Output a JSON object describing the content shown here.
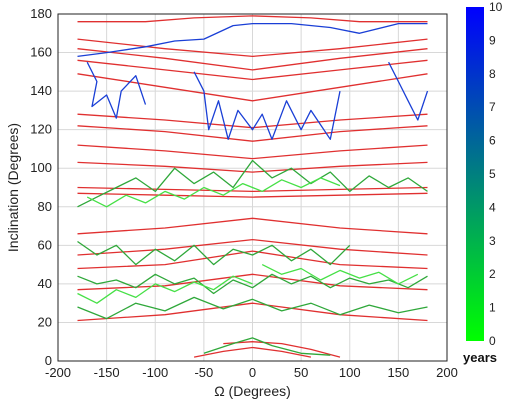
{
  "chart_data": {
    "type": "line",
    "title": "",
    "xlabel": "Ω  (Degrees)",
    "ylabel": "Inclination (Degrees)",
    "xlim": [
      -200,
      200
    ],
    "ylim": [
      0,
      180
    ],
    "xticks": [
      -200,
      -150,
      -100,
      -50,
      0,
      50,
      100,
      150,
      200
    ],
    "yticks": [
      0,
      20,
      40,
      60,
      80,
      100,
      120,
      140,
      160,
      180
    ],
    "grid": true,
    "colorbar": {
      "label": "years",
      "min": 0,
      "max": 10,
      "ticks": [
        0,
        1,
        2,
        3,
        4,
        5,
        6,
        7,
        8,
        9,
        10
      ],
      "color_min": "#00ff00",
      "color_max": "#0000ff"
    },
    "series": [
      {
        "color": "#e03030",
        "points": [
          [
            -180,
            21
          ],
          [
            -90,
            24
          ],
          [
            0,
            30
          ],
          [
            90,
            24
          ],
          [
            180,
            21
          ]
        ]
      },
      {
        "color": "#e03030",
        "points": [
          [
            -180,
            37
          ],
          [
            -90,
            39
          ],
          [
            0,
            45
          ],
          [
            90,
            39
          ],
          [
            180,
            37
          ]
        ]
      },
      {
        "color": "#e03030",
        "points": [
          [
            -180,
            48
          ],
          [
            -90,
            50
          ],
          [
            0,
            57
          ],
          [
            90,
            50
          ],
          [
            180,
            48
          ]
        ]
      },
      {
        "color": "#e03030",
        "points": [
          [
            -180,
            55
          ],
          [
            -90,
            58
          ],
          [
            0,
            63
          ],
          [
            90,
            58
          ],
          [
            180,
            55
          ]
        ]
      },
      {
        "color": "#e03030",
        "points": [
          [
            -180,
            66
          ],
          [
            -90,
            69
          ],
          [
            0,
            74
          ],
          [
            90,
            69
          ],
          [
            180,
            66
          ]
        ]
      },
      {
        "color": "#e03030",
        "points": [
          [
            -180,
            87
          ],
          [
            -90,
            86
          ],
          [
            0,
            85
          ],
          [
            90,
            86
          ],
          [
            180,
            87
          ]
        ]
      },
      {
        "color": "#e03030",
        "points": [
          [
            -180,
            90
          ],
          [
            -90,
            89
          ],
          [
            0,
            88
          ],
          [
            90,
            89
          ],
          [
            180,
            90
          ]
        ]
      },
      {
        "color": "#e03030",
        "points": [
          [
            -180,
            103
          ],
          [
            -90,
            101
          ],
          [
            0,
            98
          ],
          [
            90,
            101
          ],
          [
            180,
            103
          ]
        ]
      },
      {
        "color": "#e03030",
        "points": [
          [
            -180,
            112
          ],
          [
            -90,
            109
          ],
          [
            0,
            105
          ],
          [
            90,
            109
          ],
          [
            180,
            112
          ]
        ]
      },
      {
        "color": "#e03030",
        "points": [
          [
            -180,
            122
          ],
          [
            -90,
            119
          ],
          [
            0,
            114
          ],
          [
            90,
            119
          ],
          [
            180,
            122
          ]
        ]
      },
      {
        "color": "#e03030",
        "points": [
          [
            -180,
            128
          ],
          [
            -90,
            125
          ],
          [
            0,
            121
          ],
          [
            90,
            125
          ],
          [
            180,
            128
          ]
        ]
      },
      {
        "color": "#e03030",
        "points": [
          [
            -180,
            149
          ],
          [
            -90,
            142
          ],
          [
            0,
            135
          ],
          [
            90,
            142
          ],
          [
            180,
            149
          ]
        ]
      },
      {
        "color": "#e03030",
        "points": [
          [
            -180,
            156
          ],
          [
            -90,
            151
          ],
          [
            0,
            146
          ],
          [
            90,
            151
          ],
          [
            180,
            156
          ]
        ]
      },
      {
        "color": "#e03030",
        "points": [
          [
            -180,
            162
          ],
          [
            -90,
            157
          ],
          [
            0,
            151
          ],
          [
            90,
            157
          ],
          [
            180,
            162
          ]
        ]
      },
      {
        "color": "#e03030",
        "points": [
          [
            -180,
            167
          ],
          [
            -90,
            162
          ],
          [
            0,
            158
          ],
          [
            90,
            162
          ],
          [
            180,
            167
          ]
        ]
      },
      {
        "color": "#e03030",
        "points": [
          [
            -180,
            176
          ],
          [
            -110,
            176
          ],
          [
            -60,
            178
          ],
          [
            0,
            179
          ],
          [
            60,
            178
          ],
          [
            110,
            176
          ],
          [
            180,
            176
          ]
        ]
      },
      {
        "color": "#e03030",
        "points": [
          [
            -30,
            9
          ],
          [
            0,
            10
          ],
          [
            30,
            9
          ],
          [
            60,
            6
          ],
          [
            90,
            2
          ]
        ]
      },
      {
        "color": "#e03030",
        "points": [
          [
            -60,
            2
          ],
          [
            -30,
            5
          ],
          [
            0,
            7
          ],
          [
            30,
            5
          ],
          [
            60,
            2
          ]
        ]
      },
      {
        "color": "#1a3fd6",
        "points": [
          [
            -180,
            158
          ],
          [
            -150,
            160
          ],
          [
            -110,
            163
          ],
          [
            -80,
            166
          ],
          [
            -50,
            167
          ],
          [
            -20,
            174
          ],
          [
            0,
            175
          ],
          [
            40,
            175
          ],
          [
            80,
            173
          ],
          [
            110,
            170
          ],
          [
            150,
            175
          ],
          [
            180,
            175
          ]
        ]
      },
      {
        "color": "#1a3fd6",
        "points": [
          [
            -170,
            155
          ],
          [
            -160,
            145
          ],
          [
            -165,
            132
          ],
          [
            -150,
            138
          ],
          [
            -140,
            126
          ],
          [
            -135,
            140
          ],
          [
            -120,
            148
          ],
          [
            -110,
            133
          ]
        ]
      },
      {
        "color": "#1a3fd6",
        "points": [
          [
            -60,
            150
          ],
          [
            -50,
            140
          ],
          [
            -45,
            120
          ],
          [
            -35,
            135
          ],
          [
            -25,
            115
          ],
          [
            -15,
            130
          ],
          [
            0,
            120
          ],
          [
            10,
            128
          ],
          [
            20,
            115
          ],
          [
            35,
            135
          ],
          [
            50,
            120
          ],
          [
            60,
            130
          ],
          [
            80,
            115
          ],
          [
            90,
            140
          ]
        ]
      },
      {
        "color": "#1a3fd6",
        "points": [
          [
            140,
            155
          ],
          [
            150,
            145
          ],
          [
            160,
            135
          ],
          [
            170,
            125
          ],
          [
            180,
            140
          ]
        ]
      },
      {
        "color": "#2fa83a",
        "points": [
          [
            -180,
            80
          ],
          [
            -160,
            85
          ],
          [
            -140,
            90
          ],
          [
            -120,
            95
          ],
          [
            -100,
            88
          ],
          [
            -80,
            100
          ],
          [
            -60,
            92
          ],
          [
            -40,
            98
          ],
          [
            -20,
            90
          ],
          [
            0,
            104
          ],
          [
            20,
            95
          ],
          [
            40,
            100
          ],
          [
            60,
            92
          ],
          [
            80,
            98
          ],
          [
            100,
            88
          ],
          [
            120,
            96
          ],
          [
            140,
            90
          ],
          [
            160,
            95
          ],
          [
            180,
            88
          ]
        ]
      },
      {
        "color": "#2fa83a",
        "points": [
          [
            -180,
            44
          ],
          [
            -160,
            40
          ],
          [
            -140,
            42
          ],
          [
            -120,
            38
          ],
          [
            -100,
            45
          ],
          [
            -80,
            40
          ],
          [
            -60,
            43
          ],
          [
            -40,
            35
          ],
          [
            -20,
            42
          ],
          [
            0,
            38
          ],
          [
            20,
            45
          ],
          [
            40,
            40
          ],
          [
            60,
            44
          ],
          [
            80,
            38
          ],
          [
            100,
            43
          ],
          [
            120,
            40
          ],
          [
            140,
            42
          ],
          [
            160,
            38
          ],
          [
            180,
            44
          ]
        ]
      },
      {
        "color": "#2fa83a",
        "points": [
          [
            -180,
            62
          ],
          [
            -160,
            55
          ],
          [
            -140,
            60
          ],
          [
            -120,
            50
          ],
          [
            -100,
            58
          ],
          [
            -80,
            52
          ],
          [
            -60,
            60
          ],
          [
            -40,
            50
          ],
          [
            -20,
            58
          ],
          [
            0,
            55
          ],
          [
            20,
            60
          ],
          [
            40,
            52
          ],
          [
            60,
            58
          ],
          [
            80,
            50
          ],
          [
            100,
            60
          ]
        ]
      },
      {
        "color": "#2fa83a",
        "points": [
          [
            -180,
            28
          ],
          [
            -150,
            22
          ],
          [
            -120,
            30
          ],
          [
            -90,
            26
          ],
          [
            -60,
            33
          ],
          [
            -30,
            27
          ],
          [
            0,
            32
          ],
          [
            30,
            26
          ],
          [
            60,
            30
          ],
          [
            90,
            24
          ],
          [
            120,
            29
          ],
          [
            150,
            25
          ],
          [
            180,
            28
          ]
        ]
      },
      {
        "color": "#2fa83a",
        "points": [
          [
            -50,
            4
          ],
          [
            -20,
            9
          ],
          [
            0,
            12
          ],
          [
            20,
            8
          ],
          [
            50,
            4
          ],
          [
            80,
            3
          ]
        ]
      },
      {
        "color": "#46e046",
        "points": [
          [
            -170,
            85
          ],
          [
            -150,
            80
          ],
          [
            -130,
            86
          ],
          [
            -110,
            82
          ],
          [
            -90,
            88
          ],
          [
            -70,
            84
          ],
          [
            -50,
            90
          ],
          [
            -30,
            86
          ],
          [
            -10,
            92
          ],
          [
            10,
            88
          ],
          [
            30,
            94
          ],
          [
            50,
            90
          ],
          [
            70,
            95
          ],
          [
            90,
            91
          ]
        ]
      },
      {
        "color": "#46e046",
        "points": [
          [
            -180,
            35
          ],
          [
            -160,
            30
          ],
          [
            -140,
            37
          ],
          [
            -120,
            33
          ],
          [
            -100,
            40
          ],
          [
            -80,
            36
          ],
          [
            -60,
            41
          ],
          [
            -40,
            37
          ],
          [
            -20,
            44
          ],
          [
            0,
            40
          ]
        ]
      },
      {
        "color": "#46e046",
        "points": [
          [
            10,
            50
          ],
          [
            30,
            45
          ],
          [
            50,
            48
          ],
          [
            70,
            42
          ],
          [
            90,
            47
          ],
          [
            110,
            43
          ],
          [
            130,
            46
          ],
          [
            150,
            40
          ],
          [
            170,
            45
          ]
        ]
      }
    ]
  }
}
